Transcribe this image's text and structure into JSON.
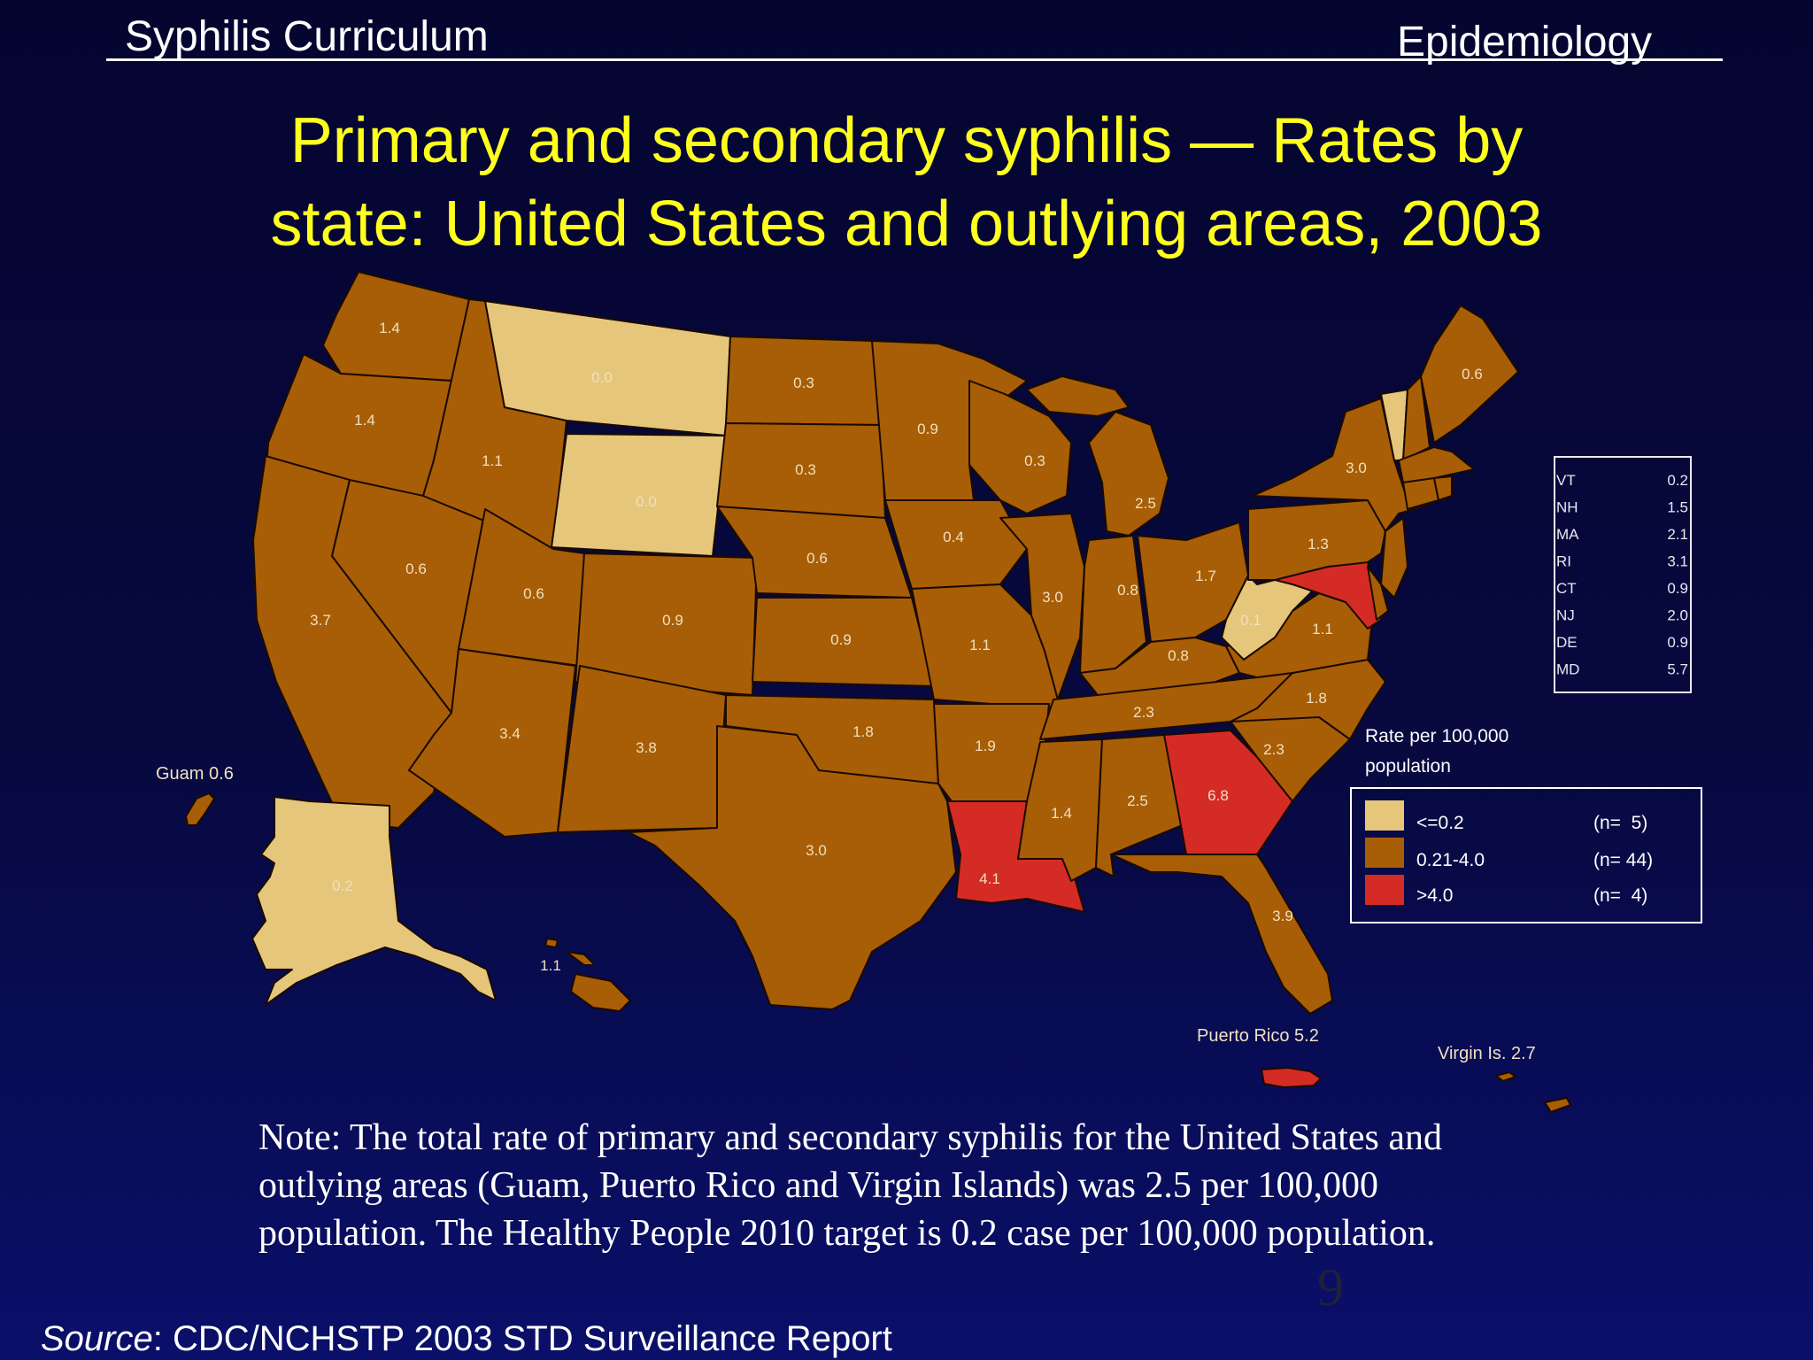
{
  "header": {
    "left": "Syphilis Curriculum",
    "right": "Epidemiology"
  },
  "title_line1": "Primary and secondary syphilis — Rates by",
  "title_line2": "state: United States and outlying  areas, 2003",
  "colors": {
    "low": "#e6c67a",
    "mid": "#a85e06",
    "high": "#d52b25",
    "title": "#ffff1e"
  },
  "states": {
    "WA": "1.4",
    "OR": "1.4",
    "CA": "3.7",
    "NV": "0.6",
    "ID": "1.1",
    "MT": "0.0",
    "WY": "0.0",
    "UT": "0.6",
    "CO": "0.9",
    "AZ": "3.4",
    "NM": "3.8",
    "ND": "0.3",
    "SD": "0.3",
    "NE": "0.6",
    "KS": "0.9",
    "OK": "1.8",
    "TX": "3.0",
    "MN": "0.9",
    "IA": "0.4",
    "MO": "1.1",
    "AR": "1.9",
    "LA": "4.1",
    "WI": "0.3",
    "IL": "3.0",
    "MI": "2.5",
    "IN": "0.8",
    "OH": "1.7",
    "KY": "0.8",
    "TN": "2.3",
    "MS": "1.4",
    "AL": "2.5",
    "GA": "6.8",
    "FL": "3.9",
    "SC": "2.3",
    "NC": "1.8",
    "VA": "1.1",
    "WV": "0.1",
    "PA": "1.3",
    "NY": "3.0",
    "ME": "0.6",
    "AK": "0.2",
    "HI": "1.1"
  },
  "territories": {
    "guam": "Guam 0.6",
    "puerto_rico": "Puerto Rico 5.2",
    "virgin_islands": "Virgin Is. 2.7"
  },
  "small_states": [
    {
      "abbr": "VT",
      "rate": "0.2"
    },
    {
      "abbr": "NH",
      "rate": "1.5"
    },
    {
      "abbr": "MA",
      "rate": "2.1"
    },
    {
      "abbr": "RI",
      "rate": "3.1"
    },
    {
      "abbr": "CT",
      "rate": "0.9"
    },
    {
      "abbr": "NJ",
      "rate": "2.0"
    },
    {
      "abbr": "DE",
      "rate": "0.9"
    },
    {
      "abbr": "MD",
      "rate": "5.7"
    }
  ],
  "legend": {
    "title_line1": "Rate per 100,000",
    "title_line2": "population",
    "items": [
      {
        "range": "<=0.2",
        "count": "(n=  5)"
      },
      {
        "range": "0.21-4.0",
        "count": "(n= 44)"
      },
      {
        "range": ">4.0",
        "count": "(n=  4)"
      }
    ]
  },
  "note": "Note: The total rate of primary and secondary syphilis for the United States and outlying areas (Guam, Puerto Rico and Virgin Islands) was 2.5 per 100,000 population. The Healthy People 2010 target is 0.2 case per 100,000 population.",
  "page_number": "9",
  "source_label": "Source",
  "source_text": ": CDC/NCHSTP 2003 STD Surveillance Report"
}
